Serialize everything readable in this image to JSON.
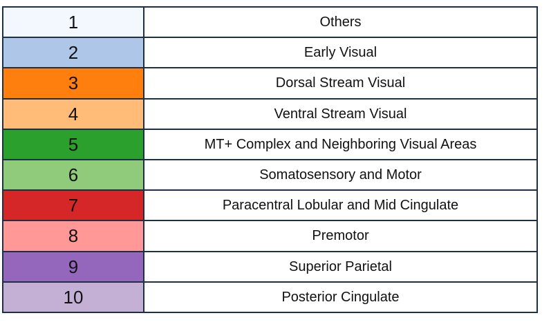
{
  "rows": [
    {
      "number": "1",
      "label": "Others",
      "color": "#f2f8fd"
    },
    {
      "number": "2",
      "label": "Early Visual",
      "color": "#aec7e8"
    },
    {
      "number": "3",
      "label": "Dorsal Stream Visual",
      "color": "#ff7f0e"
    },
    {
      "number": "4",
      "label": "Ventral Stream Visual",
      "color": "#ffbb78"
    },
    {
      "number": "5",
      "label": "MT+ Complex and Neighboring Visual Areas",
      "color": "#2ca02c"
    },
    {
      "number": "6",
      "label": "Somatosensory and Motor",
      "color": "#8fcb7a"
    },
    {
      "number": "7",
      "label": "Paracentral Lobular and Mid Cingulate",
      "color": "#d62728"
    },
    {
      "number": "8",
      "label": "Premotor",
      "color": "#ff9896"
    },
    {
      "number": "9",
      "label": "Superior Parietal",
      "color": "#9467bd"
    },
    {
      "number": "10",
      "label": "Posterior Cingulate",
      "color": "#c5b0d5"
    }
  ]
}
